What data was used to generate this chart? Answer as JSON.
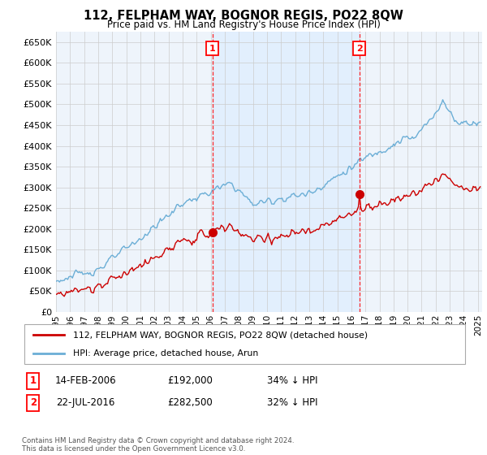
{
  "title": "112, FELPHAM WAY, BOGNOR REGIS, PO22 8QW",
  "subtitle": "Price paid vs. HM Land Registry's House Price Index (HPI)",
  "legend_line1": "112, FELPHAM WAY, BOGNOR REGIS, PO22 8QW (detached house)",
  "legend_line2": "HPI: Average price, detached house, Arun",
  "footnote": "Contains HM Land Registry data © Crown copyright and database right 2024.\nThis data is licensed under the Open Government Licence v3.0.",
  "sale1_date": "14-FEB-2006",
  "sale1_price": "£192,000",
  "sale1_hpi": "34% ↓ HPI",
  "sale1_year": 2006.12,
  "sale1_value": 192000,
  "sale2_date": "22-JUL-2016",
  "sale2_price": "£282,500",
  "sale2_hpi": "32% ↓ HPI",
  "sale2_year": 2016.56,
  "sale2_value": 282500,
  "hpi_color": "#6baed6",
  "price_color": "#cc0000",
  "shade_color": "#ddeeff",
  "bg_color": "#eef4fb",
  "grid_color": "#cccccc",
  "ylim_min": 0,
  "ylim_max": 675000,
  "xlim_min": 1995.0,
  "xlim_max": 2025.3
}
